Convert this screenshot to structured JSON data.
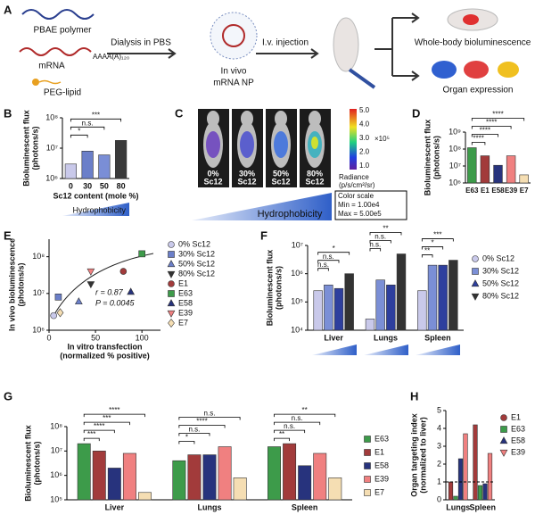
{
  "panel_a": {
    "panel": "A",
    "polymer": "PBAE polymer",
    "mrna": "mRNA",
    "poly_a": "AAAA(A)₁₂₀",
    "lipid": "PEG-lipid",
    "step_1": "Dialysis in PBS",
    "nanoparticle": [
      "In vivo",
      "mRNA NP"
    ],
    "step_2": "I.v. injection",
    "readout_1": "Whole-body bioluminescence",
    "readout_2": "Organ expression"
  },
  "panel_c": {
    "panel": "C",
    "mice": [
      [
        "0%",
        "Sc12"
      ],
      [
        "30%",
        "Sc12"
      ],
      [
        "50%",
        "Sc12"
      ],
      [
        "80%",
        "Sc12"
      ]
    ],
    "colorbar_ticks": [
      "5.0",
      "4.0",
      "3.0",
      "2.0",
      "1.0"
    ],
    "colorbar_unit": "×10⁵",
    "colorbar_label": [
      "Radiance",
      "(p/s/cm²/sr)"
    ],
    "color_scale": [
      "Color scale",
      "Min = 1.00e4",
      "Max = 5.00e5"
    ],
    "footer": "Hydrophobicity"
  },
  "chart_data": [
    {
      "panel": "B",
      "type": "bar",
      "categories": [
        "0",
        "30",
        "50",
        "80"
      ],
      "values": [
        3000000,
        8000000,
        6000000,
        18000000
      ],
      "colors": [
        "#c9c9ea",
        "#6b7fc9",
        "#7a8ed6",
        "#3a3a3a"
      ],
      "ylabel": [
        "Bioluminescent flux",
        "(photons/s)"
      ],
      "xlabel": "Sc12 content (mole %)",
      "log_y": true,
      "ylim": [
        1000000,
        100000000
      ],
      "yticks": [
        {
          "value": 1000000,
          "label": "10⁶"
        },
        {
          "value": 10000000,
          "label": "10⁷"
        },
        {
          "value": 100000000,
          "label": "10⁸"
        }
      ],
      "annotations": [
        "*",
        "n.s.",
        "***"
      ],
      "footer": "Hydrophobicity"
    },
    {
      "panel": "D",
      "type": "bar",
      "categories": [
        "E63",
        "E1",
        "E58",
        "E39",
        "E7"
      ],
      "values": [
        120000000,
        40000000,
        11000000,
        40000000,
        3000000
      ],
      "colors": [
        "#3d9b4a",
        "#a23b3b",
        "#27337d",
        "#f08080",
        "#f5deb3"
      ],
      "ylabel": [
        "Bioluminescent flux",
        "(photons/s)"
      ],
      "log_y": true,
      "ylim": [
        1000000,
        1000000000
      ],
      "yticks": [
        {
          "value": 1000000,
          "label": "10⁶"
        },
        {
          "value": 10000000,
          "label": "10⁷"
        },
        {
          "value": 100000000,
          "label": "10⁸"
        },
        {
          "value": 1000000000,
          "label": "10⁹"
        }
      ],
      "annotations": [
        "****",
        "****",
        "****",
        "****"
      ]
    },
    {
      "panel": "E",
      "type": "scatter",
      "ylabel": [
        "In vivo bioluminescence",
        "(photons/s)"
      ],
      "xlabel": [
        "In vitro transfection",
        "(normalized % positive)"
      ],
      "log_y": true,
      "xlim": [
        0,
        120
      ],
      "xticks": [
        0,
        50,
        100
      ],
      "ylim": [
        1000000,
        300000000
      ],
      "yticks": [
        {
          "value": 1000000,
          "label": "10⁶"
        },
        {
          "value": 10000000,
          "label": "10⁷"
        },
        {
          "value": 100000000,
          "label": "10⁸"
        }
      ],
      "legend": true,
      "annotations": [
        "r = 0.87",
        "P = 0.0045"
      ],
      "series": [
        {
          "name": "0% Sc12",
          "color": "#c9c9ea",
          "marker": "circle",
          "x": [
            5
          ],
          "values": [
            2500000
          ]
        },
        {
          "name": "30% Sc12",
          "color": "#6b7fc9",
          "marker": "square",
          "x": [
            10
          ],
          "values": [
            8000000
          ]
        },
        {
          "name": "50% Sc12",
          "color": "#6b7fc9",
          "marker": "triangle",
          "x": [
            32
          ],
          "values": [
            6000000
          ]
        },
        {
          "name": "80% Sc12",
          "color": "#333333",
          "marker": "triangle-down",
          "x": [
            45
          ],
          "values": [
            18000000
          ]
        },
        {
          "name": "E1",
          "color": "#a23b3b",
          "marker": "circle",
          "x": [
            80
          ],
          "values": [
            40000000
          ]
        },
        {
          "name": "E63",
          "color": "#3d9b4a",
          "marker": "square",
          "x": [
            100
          ],
          "values": [
            120000000
          ]
        },
        {
          "name": "E58",
          "color": "#27337d",
          "marker": "triangle",
          "x": [
            88
          ],
          "values": [
            11000000
          ]
        },
        {
          "name": "E39",
          "color": "#f08080",
          "marker": "triangle-down",
          "x": [
            45
          ],
          "values": [
            40000000
          ]
        },
        {
          "name": "E7",
          "color": "#f5deb3",
          "marker": "diamond",
          "x": [
            12
          ],
          "values": [
            3000000
          ]
        }
      ]
    },
    {
      "panel": "F",
      "type": "bar",
      "categories": [
        "Liver",
        "Lungs",
        "Spleen"
      ],
      "ylabel": [
        "Bioluminescent flux",
        "(photons/s)"
      ],
      "log_y": true,
      "ylim": [
        10000,
        10000000
      ],
      "yticks": [
        {
          "value": 10000,
          "label": "10⁴"
        },
        {
          "value": 100000,
          "label": "10⁵"
        },
        {
          "value": 1000000,
          "label": "10⁶"
        },
        {
          "value": 10000000,
          "label": "10⁷"
        }
      ],
      "legend": true,
      "series": [
        {
          "name": "0% Sc12",
          "color": "#c9c9ea",
          "marker": "circle",
          "values": [
            250000,
            25000,
            250000
          ]
        },
        {
          "name": "30% Sc12",
          "color": "#7b8fd6",
          "marker": "square",
          "values": [
            400000,
            600000,
            2000000
          ]
        },
        {
          "name": "50% Sc12",
          "color": "#2e3f9e",
          "marker": "triangle",
          "values": [
            300000,
            400000,
            2000000
          ]
        },
        {
          "name": "80% Sc12",
          "color": "#333333",
          "marker": "triangle-down",
          "values": [
            1000000,
            5000000,
            3000000
          ]
        }
      ],
      "annotations": [
        [
          "n.s.",
          "n.s.",
          "*"
        ],
        [
          "n.s.",
          "n.s.",
          "**"
        ],
        [
          "**",
          "*",
          "***"
        ]
      ]
    },
    {
      "panel": "G",
      "type": "bar",
      "categories": [
        "Liver",
        "Lungs",
        "Spleen"
      ],
      "ylabel": [
        "Bioluminescent flux",
        "(photons/s)"
      ],
      "log_y": true,
      "ylim": [
        100000,
        100000000
      ],
      "yticks": [
        {
          "value": 100000,
          "label": "10⁵"
        },
        {
          "value": 1000000,
          "label": "10⁶"
        },
        {
          "value": 10000000,
          "label": "10⁷"
        },
        {
          "value": 100000000,
          "label": "10⁸"
        }
      ],
      "legend": true,
      "series": [
        {
          "name": "E63",
          "color": "#3d9b4a",
          "marker": "square",
          "values": [
            20000000,
            4000000,
            15000000
          ]
        },
        {
          "name": "E1",
          "color": "#a23b3b",
          "marker": "square",
          "values": [
            10000000,
            7000000,
            20000000
          ]
        },
        {
          "name": "E58",
          "color": "#27337d",
          "marker": "square",
          "values": [
            2000000,
            7000000,
            2500000
          ]
        },
        {
          "name": "E39",
          "color": "#f08080",
          "marker": "square",
          "values": [
            8000000,
            15000000,
            8000000
          ]
        },
        {
          "name": "E7",
          "color": "#f5deb3",
          "marker": "square",
          "values": [
            200000,
            800000,
            800000
          ]
        }
      ],
      "annotations": [
        [
          "***",
          "****",
          "***",
          "****"
        ],
        [
          "*",
          "n.s.",
          "****",
          "n.s."
        ],
        [
          "**",
          "n.s.",
          "n.s.",
          "**"
        ]
      ]
    },
    {
      "panel": "H",
      "type": "bar",
      "categories": [
        "Lungs",
        "Spleen"
      ],
      "ylabel": [
        "Organ targeting index",
        "(normalized to liver)"
      ],
      "ylim": [
        0,
        5
      ],
      "yticks": [
        0,
        1,
        2,
        3,
        4,
        5
      ],
      "hline": 1,
      "legend": true,
      "series": [
        {
          "name": "E1",
          "color": "#a23b3b",
          "marker": "circle",
          "values": [
            1.0,
            4.2
          ]
        },
        {
          "name": "E63",
          "color": "#3d9b4a",
          "marker": "square",
          "values": [
            0.2,
            0.8
          ]
        },
        {
          "name": "E58",
          "color": "#27337d",
          "marker": "triangle",
          "values": [
            2.3,
            0.9
          ]
        },
        {
          "name": "E39",
          "color": "#f08080",
          "marker": "triangle-down",
          "values": [
            3.7,
            2.6
          ]
        }
      ]
    }
  ]
}
